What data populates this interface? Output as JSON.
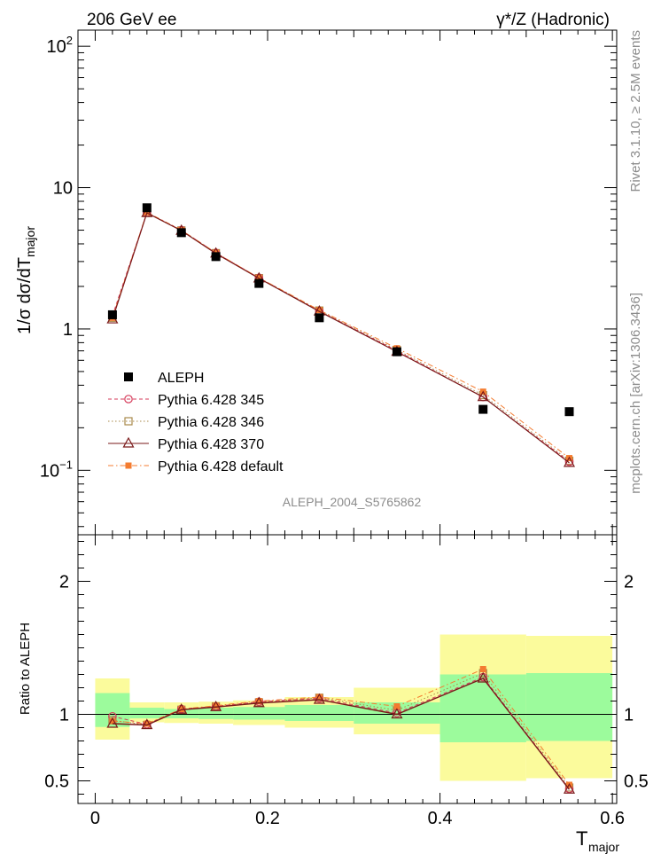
{
  "header": {
    "left": "206 GeV ee",
    "right": "γ*/Z (Hadronic)"
  },
  "side_text": {
    "rivet": "Rivet 3.1.10, ≥ 2.5M events",
    "mcplots": "mcplots.cern.ch [arXiv:1306.3436]"
  },
  "analysis_label": "ALEPH_2004_S5765862",
  "chart_data": [
    {
      "type": "line",
      "panel": "main",
      "ylabel": "1/σ dσ/dT",
      "ylabel_sub": "major",
      "yscale": "log",
      "ylim": [
        0.035,
        130
      ],
      "xlim": [
        -0.02,
        0.605
      ],
      "y_ticks": [
        {
          "value": 0.1,
          "label": "10",
          "sup": "−1"
        },
        {
          "value": 1,
          "label": "1",
          "sup": ""
        },
        {
          "value": 10,
          "label": "10",
          "sup": ""
        },
        {
          "value": 100,
          "label": "10",
          "sup": "2"
        }
      ],
      "x": [
        0.02,
        0.06,
        0.1,
        0.14,
        0.19,
        0.26,
        0.35,
        0.45,
        0.55
      ],
      "x_bins": [
        [
          0,
          0.04
        ],
        [
          0.04,
          0.08
        ],
        [
          0.08,
          0.12
        ],
        [
          0.12,
          0.16
        ],
        [
          0.16,
          0.22
        ],
        [
          0.22,
          0.3
        ],
        [
          0.3,
          0.4
        ],
        [
          0.4,
          0.5
        ],
        [
          0.5,
          0.6
        ]
      ],
      "series": [
        {
          "name": "ALEPH",
          "values": [
            1.26,
            7.2,
            4.8,
            3.25,
            2.1,
            1.2,
            0.69,
            0.27,
            0.26
          ],
          "color": "#000000"
        },
        {
          "name": "Pythia 6.428 345",
          "values": [
            1.24,
            6.65,
            5.0,
            3.45,
            2.3,
            1.34,
            0.7,
            0.33,
            0.115
          ],
          "color": "#d63a5a"
        },
        {
          "name": "Pythia 6.428 346",
          "values": [
            1.2,
            6.62,
            4.98,
            3.44,
            2.29,
            1.35,
            0.71,
            0.34,
            0.117
          ],
          "color": "#a8884a"
        },
        {
          "name": "Pythia 6.428 370",
          "values": [
            1.17,
            6.62,
            4.96,
            3.42,
            2.28,
            1.33,
            0.69,
            0.33,
            0.113
          ],
          "color": "#7a1a1a"
        },
        {
          "name": "Pythia 6.428 default",
          "values": [
            1.2,
            6.7,
            5.0,
            3.46,
            2.3,
            1.36,
            0.73,
            0.36,
            0.122
          ],
          "color": "#f47c30"
        }
      ]
    },
    {
      "type": "line",
      "panel": "ratio",
      "ylabel": "Ratio to ALEPH",
      "xlabel": "T",
      "xlabel_sub": "major",
      "ylim": [
        0.33,
        2.35
      ],
      "xlim": [
        -0.02,
        0.605
      ],
      "y_ticks": [
        0.5,
        1,
        2
      ],
      "x_ticks": [
        0,
        0.2,
        0.4,
        0.6
      ],
      "x_tick_labels": [
        "0",
        "0.2",
        "0.4",
        "0.6"
      ],
      "x": [
        0.02,
        0.06,
        0.1,
        0.14,
        0.19,
        0.26,
        0.35,
        0.45,
        0.55
      ],
      "bands": {
        "stat": [
          [
            0.905,
            1.16
          ],
          [
            0.97,
            1.05
          ],
          [
            0.97,
            1.04
          ],
          [
            0.965,
            1.05
          ],
          [
            0.96,
            1.055
          ],
          [
            0.95,
            1.07
          ],
          [
            0.93,
            1.09
          ],
          [
            0.79,
            1.3
          ],
          [
            0.8,
            1.31
          ]
        ],
        "total": [
          [
            0.81,
            1.27
          ],
          [
            0.94,
            1.09
          ],
          [
            0.935,
            1.09
          ],
          [
            0.93,
            1.095
          ],
          [
            0.92,
            1.105
          ],
          [
            0.9,
            1.13
          ],
          [
            0.85,
            1.2
          ],
          [
            0.5,
            1.6
          ],
          [
            0.52,
            1.59
          ]
        ]
      },
      "series": [
        {
          "name": "Pythia 6.428 345",
          "values": [
            0.985,
            0.925,
            1.04,
            1.06,
            1.095,
            1.12,
            1.01,
            1.28,
            0.44
          ]
        },
        {
          "name": "Pythia 6.428 346",
          "values": [
            0.955,
            0.92,
            1.035,
            1.06,
            1.09,
            1.125,
            1.03,
            1.31,
            0.45
          ]
        },
        {
          "name": "Pythia 6.428 370",
          "values": [
            0.93,
            0.92,
            1.035,
            1.055,
            1.085,
            1.11,
            1.0,
            1.27,
            0.435
          ]
        },
        {
          "name": "Pythia 6.428 default",
          "values": [
            0.95,
            0.93,
            1.04,
            1.065,
            1.1,
            1.13,
            1.06,
            1.34,
            0.47
          ]
        }
      ]
    }
  ],
  "colors": {
    "band_stat": "#9cfb9c",
    "band_total": "#fbfb9c",
    "ref_line": "#000000"
  }
}
